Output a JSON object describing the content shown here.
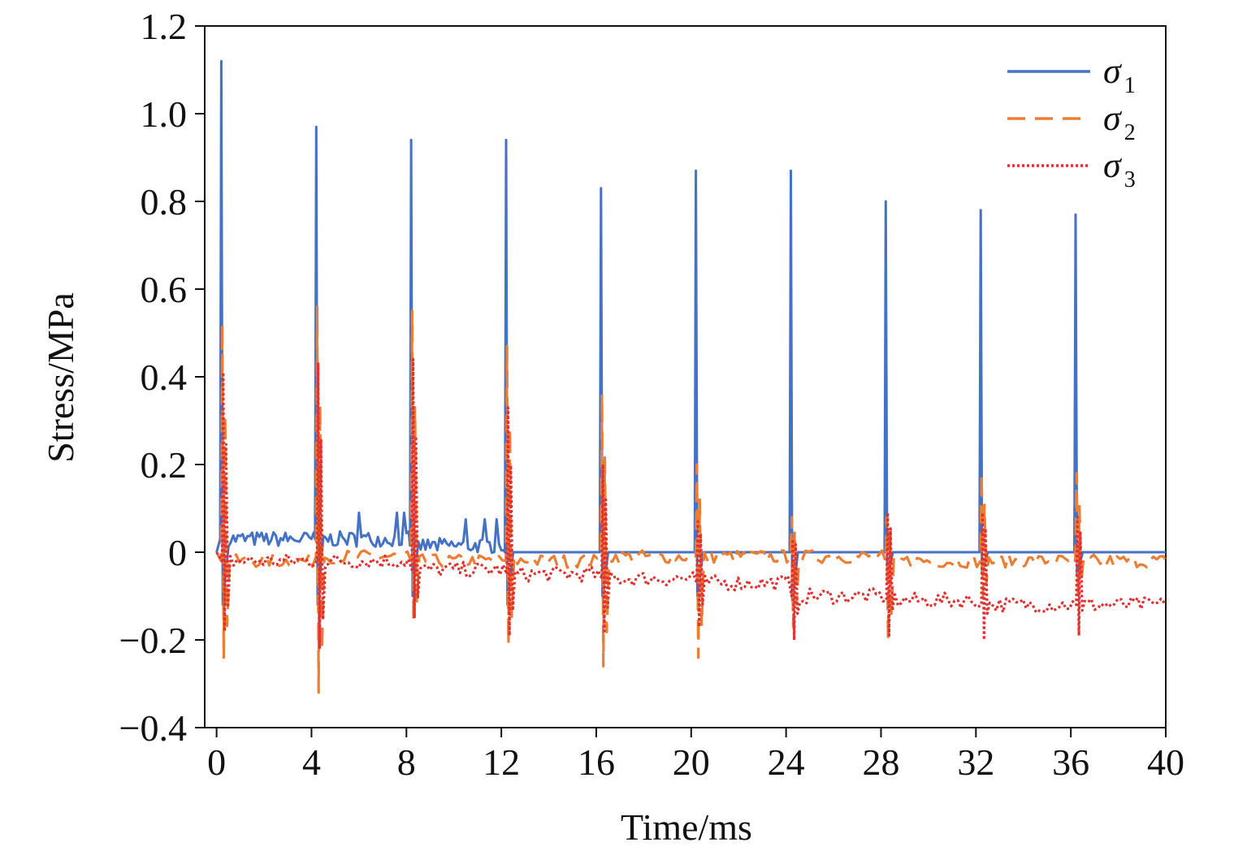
{
  "chart_data": {
    "type": "line",
    "title": "",
    "xlabel": "Time/ms",
    "ylabel": "Stress/MPa",
    "xlim": [
      -0.5,
      40
    ],
    "ylim": [
      -0.4,
      1.2
    ],
    "xticks": [
      0,
      4,
      8,
      12,
      16,
      20,
      24,
      28,
      32,
      36,
      40
    ],
    "xtick_labels": [
      "0",
      "4",
      "8",
      "12",
      "16",
      "20",
      "24",
      "28",
      "32",
      "36",
      "40"
    ],
    "yticks": [
      -0.4,
      -0.2,
      0,
      0.2,
      0.4,
      0.6,
      0.8,
      1.0,
      1.2
    ],
    "ytick_labels": [
      "−0.4",
      "−0.2",
      "0",
      "0.2",
      "0.4",
      "0.6",
      "0.8",
      "1.0",
      "1.2"
    ],
    "legend_position": "top-right",
    "grid": false,
    "pulse_times": [
      0.2,
      4.2,
      8.2,
      12.2,
      16.2,
      20.2,
      24.2,
      28.2,
      32.2,
      36.2
    ],
    "series": [
      {
        "name": "σ1",
        "sub": "1",
        "color": "#4472C4",
        "dash": "solid",
        "peaks": [
          1.12,
          0.97,
          0.94,
          0.94,
          0.83,
          0.87,
          0.87,
          0.8,
          0.78,
          0.77
        ],
        "troughs": [
          -0.12,
          -0.12,
          -0.1,
          -0.12,
          -0.1,
          -0.1,
          -0.11,
          -0.06,
          -0.05,
          -0.05
        ],
        "baseline": [
          0.03,
          0.03,
          0.015,
          0.0,
          0.0,
          0.0,
          0.0,
          0.0,
          0.0,
          0.0
        ]
      },
      {
        "name": "σ2",
        "sub": "2",
        "color": "#ED7D31",
        "dash": "dashed",
        "peaks": [
          0.52,
          0.56,
          0.55,
          0.47,
          0.36,
          0.2,
          0.08,
          0.08,
          0.18,
          0.18
        ],
        "troughs": [
          -0.24,
          -0.32,
          -0.16,
          -0.21,
          -0.26,
          -0.24,
          -0.17,
          -0.2,
          -0.1,
          -0.1
        ],
        "baseline": [
          -0.02,
          -0.01,
          -0.02,
          -0.02,
          -0.01,
          -0.01,
          -0.01,
          -0.02,
          -0.02,
          -0.02
        ]
      },
      {
        "name": "σ3",
        "sub": "3",
        "color": "#E03030",
        "dash": "dotted",
        "peaks": [
          0.41,
          0.43,
          0.44,
          0.33,
          0.2,
          0.07,
          0.03,
          0.09,
          0.09,
          0.08
        ],
        "troughs": [
          -0.18,
          -0.22,
          -0.15,
          -0.19,
          -0.18,
          -0.17,
          -0.2,
          -0.19,
          -0.2,
          -0.19
        ],
        "baseline": [
          -0.02,
          -0.02,
          -0.04,
          -0.05,
          -0.06,
          -0.07,
          -0.1,
          -0.11,
          -0.12,
          -0.12
        ]
      }
    ]
  }
}
